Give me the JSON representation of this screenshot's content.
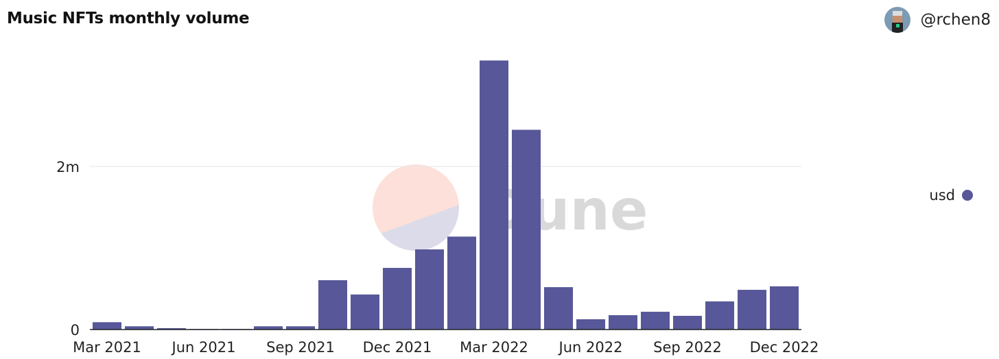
{
  "header": {
    "title": "Music NFTs monthly volume",
    "username": "@rchen8"
  },
  "watermark": "Dune",
  "chart_data": {
    "type": "bar",
    "title": "Music NFTs monthly volume",
    "categories": [
      "Mar 2021",
      "Apr 2021",
      "May 2021",
      "Jun 2021",
      "Jul 2021",
      "Aug 2021",
      "Sep 2021",
      "Oct 2021",
      "Nov 2021",
      "Dec 2021",
      "Jan 2022",
      "Feb 2022",
      "Mar 2022",
      "Apr 2022",
      "May 2022",
      "Jun 2022",
      "Jul 2022",
      "Aug 2022",
      "Sep 2022",
      "Oct 2022",
      "Nov 2022",
      "Dec 2022"
    ],
    "x_tick_labels": [
      "Mar 2021",
      "Jun 2021",
      "Sep 2021",
      "Dec 2021",
      "Mar 2022",
      "Jun 2022",
      "Sep 2022",
      "Dec 2022"
    ],
    "y_tick_labels": [
      "0",
      "2m"
    ],
    "y_ticks": [
      0,
      2000000
    ],
    "series": [
      {
        "name": "usd",
        "color": "#575799",
        "values": [
          90000,
          40000,
          17000,
          8000,
          8000,
          40000,
          40000,
          605000,
          430000,
          756000,
          983000,
          1140000,
          3300000,
          2450000,
          520000,
          126000,
          176000,
          218000,
          168000,
          345000,
          487000,
          530000
        ]
      }
    ],
    "ylim": [
      0,
      3400000
    ],
    "grid": true,
    "legend": "right",
    "xlabel": "",
    "ylabel": ""
  }
}
